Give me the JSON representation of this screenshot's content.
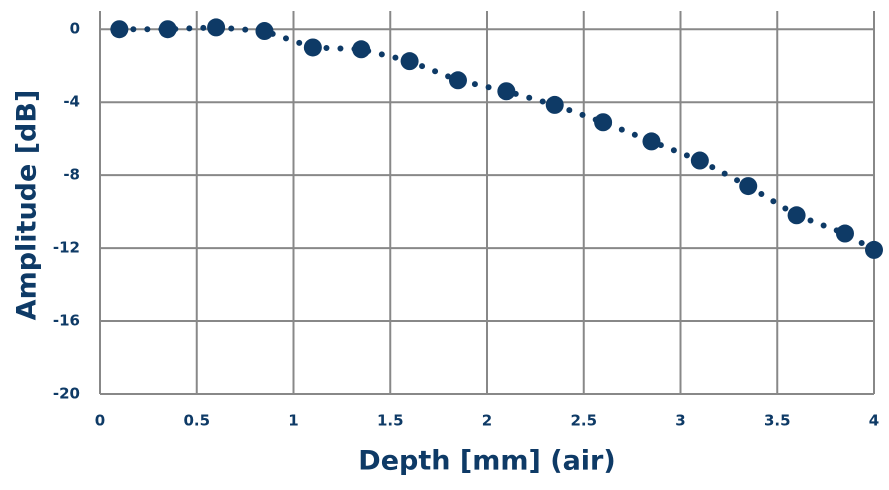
{
  "chart_data": {
    "type": "scatter",
    "x_label": "Depth [mm] (air)",
    "y_label": "Amplitude [dB]",
    "x": [
      0.1,
      0.35,
      0.6,
      0.85,
      1.1,
      1.35,
      1.6,
      1.85,
      2.1,
      2.35,
      2.6,
      2.85,
      3.1,
      3.35,
      3.6,
      3.85,
      4.0
    ],
    "values": [
      0,
      0,
      0.1,
      -0.1,
      -1.0,
      -1.1,
      -1.75,
      -2.8,
      -3.4,
      -4.15,
      -5.1,
      -6.15,
      -7.2,
      -8.6,
      -10.2,
      -11.2,
      -12.1
    ],
    "color": "#0e3a66",
    "line_style": "dotted",
    "xlim": [
      0,
      4
    ],
    "xticks": [
      0,
      0.5,
      1,
      1.5,
      2,
      2.5,
      3,
      3.5,
      4
    ],
    "ylim": [
      -20,
      1
    ],
    "yticks": [
      0,
      -4,
      -8,
      -12,
      -16,
      -20
    ],
    "grid": true
  }
}
